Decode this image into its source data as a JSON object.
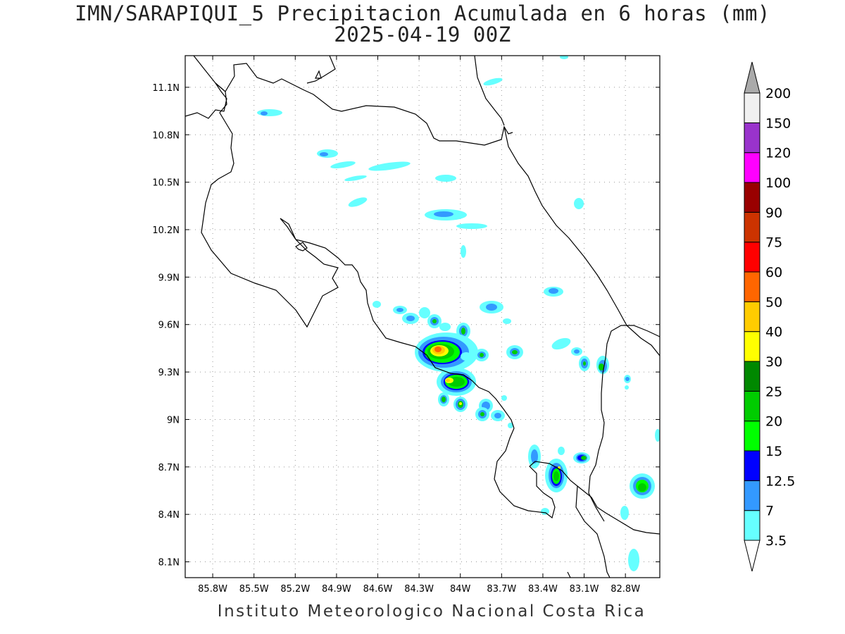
{
  "title": "IMN/SARAPIQUI_5 Precipitacion Acumulada en 6 horas (mm)",
  "subtitle": "2025-04-19 00Z",
  "footer": "Instituto Meteorologico Nacional Costa Rica",
  "map_data": {
    "type": "contour_map",
    "lon_range": [
      -86.0,
      -82.55
    ],
    "lat_range": [
      8.0,
      11.3
    ],
    "lon_ticks": [
      "85.8W",
      "85.5W",
      "85.2W",
      "84.9W",
      "84.6W",
      "84.3W",
      "84W",
      "83.7W",
      "83.4W",
      "83.1W",
      "82.8W"
    ],
    "lon_tick_values": [
      -85.8,
      -85.5,
      -85.2,
      -84.9,
      -84.6,
      -84.3,
      -84.0,
      -83.7,
      -83.4,
      -83.1,
      -82.8
    ],
    "lat_ticks": [
      "8.1N",
      "8.4N",
      "8.7N",
      "9N",
      "9.3N",
      "9.6N",
      "9.9N",
      "10.2N",
      "10.5N",
      "10.8N",
      "11.1N"
    ],
    "lat_tick_values": [
      8.1,
      8.4,
      8.7,
      9.0,
      9.3,
      9.6,
      9.9,
      10.2,
      10.5,
      10.8,
      11.1
    ],
    "grid": true
  },
  "colorbar": {
    "levels": [
      "3.5",
      "7",
      "12.5",
      "15",
      "20",
      "25",
      "30",
      "40",
      "50",
      "60",
      "75",
      "90",
      "100",
      "120",
      "150",
      "200"
    ],
    "colors": [
      "#66ffff",
      "#3399ff",
      "#0000ff",
      "#00ff00",
      "#00cc00",
      "#008800",
      "#ffff00",
      "#ffcc00",
      "#ff6600",
      "#ff0000",
      "#cc3300",
      "#990000",
      "#ff00ff",
      "#9933cc",
      "#f0f0f0"
    ],
    "upper_arrow_color": "#aaaaaa",
    "lower_arrow_color": "#ffffff"
  },
  "rain_cells": [
    {
      "lon": -84.15,
      "lat": 9.43,
      "peak": "40"
    },
    {
      "lon": -84.0,
      "lat": 9.23,
      "peak": "30"
    },
    {
      "lon": -83.72,
      "lat": 9.05,
      "peak": "25"
    },
    {
      "lon": -83.2,
      "lat": 8.65,
      "peak": "25"
    },
    {
      "lon": -82.75,
      "lat": 8.57,
      "peak": "25"
    },
    {
      "lon": -82.93,
      "lat": 9.33,
      "peak": "25"
    },
    {
      "lon": -84.17,
      "lat": 9.6,
      "peak": "25"
    },
    {
      "lon": -84.98,
      "lat": 10.68,
      "peak": "7"
    },
    {
      "lon": -85.38,
      "lat": 10.95,
      "peak": "7"
    },
    {
      "lon": -84.12,
      "lat": 10.3,
      "peak": "7"
    }
  ]
}
